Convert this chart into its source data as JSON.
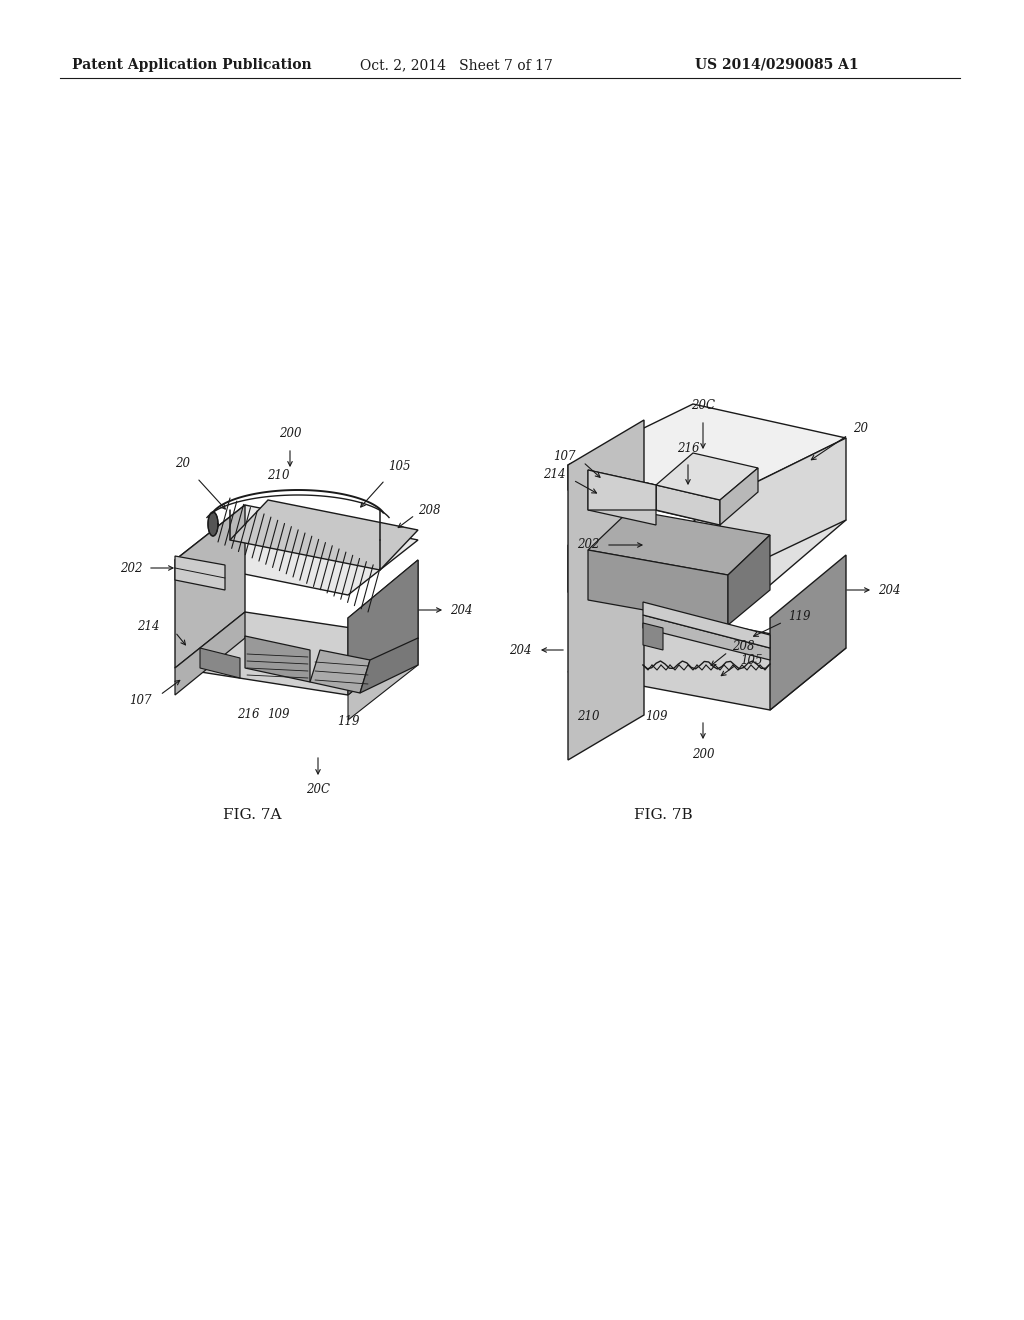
{
  "background_color": "#ffffff",
  "header_left": "Patent Application Publication",
  "header_center": "Oct. 2, 2014   Sheet 7 of 17",
  "header_right": "US 2014/0290085 A1",
  "lc": "#1a1a1a",
  "fig_label_7a": "FIG. 7A",
  "fig_label_7b": "FIG. 7B"
}
